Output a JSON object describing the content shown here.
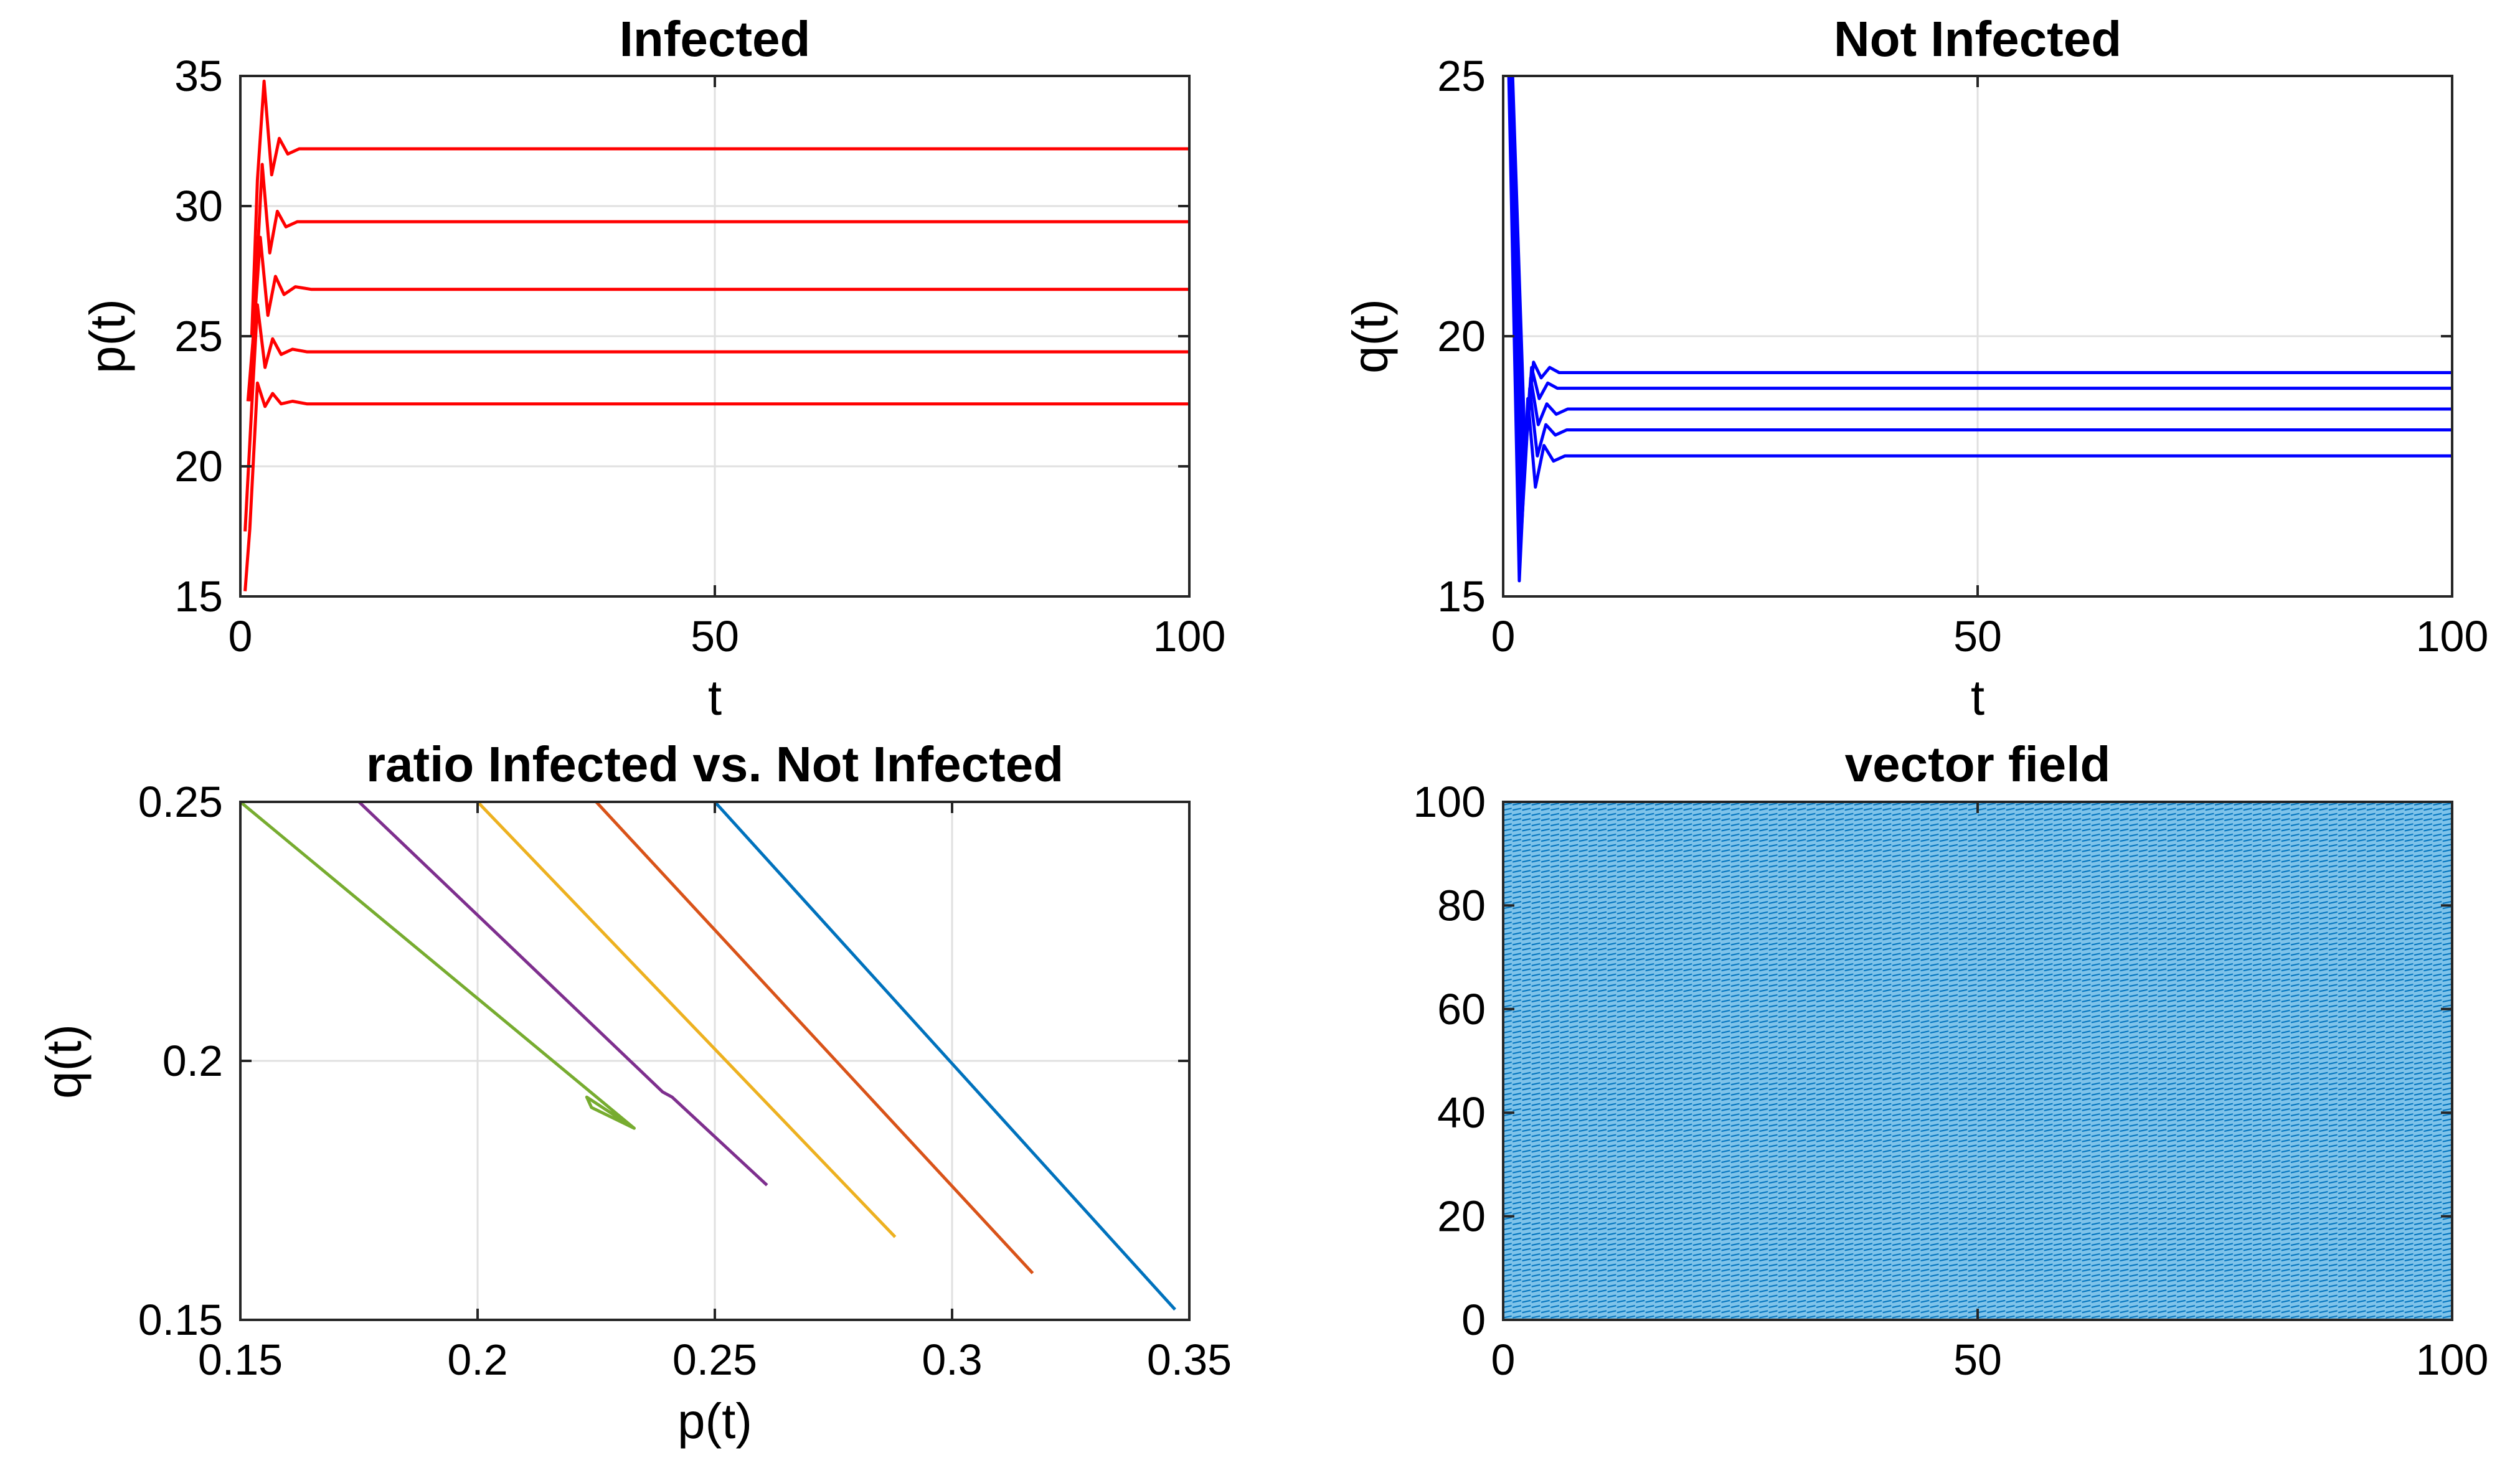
{
  "chart_data": [
    {
      "type": "line",
      "title": "Infected",
      "xlabel": "t",
      "ylabel": "p(t)",
      "xlim": [
        0,
        100
      ],
      "ylim": [
        15,
        35
      ],
      "xticks": [
        "0",
        "50",
        "100"
      ],
      "yticks": [
        "15",
        "20",
        "25",
        "30",
        "35"
      ],
      "grid": true,
      "color": "#ff0000",
      "series": [
        {
          "values": [
            [
              0.5,
              15.2
            ],
            [
              1.0,
              17.6
            ],
            [
              1.8,
              23.2
            ],
            [
              2.6,
              22.3
            ],
            [
              3.4,
              22.8
            ],
            [
              4.3,
              22.4
            ],
            [
              5.5,
              22.5
            ],
            [
              7,
              22.4
            ],
            [
              100,
              22.4
            ]
          ]
        },
        {
          "values": [
            [
              0.5,
              17.5
            ],
            [
              1.2,
              22.3
            ],
            [
              1.8,
              26.2
            ],
            [
              2.6,
              23.8
            ],
            [
              3.4,
              24.9
            ],
            [
              4.3,
              24.3
            ],
            [
              5.5,
              24.5
            ],
            [
              7,
              24.4
            ],
            [
              100,
              24.4
            ]
          ]
        },
        {
          "values": [
            [
              0.8,
              22.5
            ],
            [
              1.5,
              25.6
            ],
            [
              2.1,
              28.8
            ],
            [
              2.9,
              25.8
            ],
            [
              3.7,
              27.3
            ],
            [
              4.6,
              26.6
            ],
            [
              5.8,
              26.9
            ],
            [
              7.5,
              26.8
            ],
            [
              100,
              26.8
            ]
          ]
        },
        {
          "values": [
            [
              1.0,
              22.5
            ],
            [
              1.7,
              27.4
            ],
            [
              2.3,
              31.6
            ],
            [
              3.1,
              28.2
            ],
            [
              3.9,
              29.8
            ],
            [
              4.8,
              29.2
            ],
            [
              6.0,
              29.4
            ],
            [
              7.5,
              29.4
            ],
            [
              100,
              29.4
            ]
          ]
        },
        {
          "values": [
            [
              1.2,
              25.0
            ],
            [
              1.8,
              31.0
            ],
            [
              2.5,
              34.8
            ],
            [
              3.3,
              31.2
            ],
            [
              4.1,
              32.6
            ],
            [
              5.0,
              32.0
            ],
            [
              6.2,
              32.2
            ],
            [
              8,
              32.2
            ],
            [
              100,
              32.2
            ]
          ]
        }
      ]
    },
    {
      "type": "line",
      "title": "Not Infected",
      "xlabel": "t",
      "ylabel": "q(t)",
      "xlim": [
        0,
        100
      ],
      "ylim": [
        15,
        25
      ],
      "xticks": [
        "0",
        "50",
        "100"
      ],
      "yticks": [
        "15",
        "20",
        "25"
      ],
      "grid": true,
      "color": "#0000ff",
      "series": [
        {
          "values": [
            [
              0.6,
              25
            ],
            [
              1.7,
              15.3
            ],
            [
              2.6,
              18.8
            ],
            [
              3.4,
              17.1
            ],
            [
              4.3,
              17.9
            ],
            [
              5.3,
              17.6
            ],
            [
              6.5,
              17.7
            ],
            [
              8,
              17.7
            ],
            [
              100,
              17.7
            ]
          ]
        },
        {
          "values": [
            [
              0.7,
              25
            ],
            [
              1.9,
              16.2
            ],
            [
              2.8,
              19.0
            ],
            [
              3.6,
              17.7
            ],
            [
              4.5,
              18.3
            ],
            [
              5.5,
              18.1
            ],
            [
              6.7,
              18.2
            ],
            [
              8,
              18.2
            ],
            [
              100,
              18.2
            ]
          ]
        },
        {
          "values": [
            [
              0.8,
              25
            ],
            [
              2.0,
              16.8
            ],
            [
              2.9,
              19.2
            ],
            [
              3.7,
              18.3
            ],
            [
              4.6,
              18.7
            ],
            [
              5.6,
              18.5
            ],
            [
              6.8,
              18.6
            ],
            [
              8,
              18.6
            ],
            [
              100,
              18.6
            ]
          ]
        },
        {
          "values": [
            [
              0.9,
              25
            ],
            [
              2.2,
              17.3
            ],
            [
              3.0,
              19.4
            ],
            [
              3.8,
              18.8
            ],
            [
              4.7,
              19.1
            ],
            [
              5.7,
              19.0
            ],
            [
              6.9,
              19.0
            ],
            [
              8,
              19.0
            ],
            [
              100,
              19.0
            ]
          ]
        },
        {
          "values": [
            [
              1.0,
              25
            ],
            [
              2.3,
              17.8
            ],
            [
              3.2,
              19.5
            ],
            [
              4.0,
              19.2
            ],
            [
              4.9,
              19.4
            ],
            [
              5.9,
              19.3
            ],
            [
              7.0,
              19.3
            ],
            [
              8,
              19.3
            ],
            [
              100,
              19.3
            ]
          ]
        }
      ]
    },
    {
      "type": "line",
      "title": "ratio Infected vs. Not Infected",
      "xlabel": "p(t)",
      "ylabel": "q(t)",
      "xlim": [
        0.15,
        0.35
      ],
      "ylim": [
        0.15,
        0.25
      ],
      "xticks": [
        "0.15",
        "0.2",
        "0.25",
        "0.3",
        "0.35"
      ],
      "yticks": [
        "0.15",
        "0.2",
        "0.25"
      ],
      "grid": true,
      "series": [
        {
          "color": "#0072bd",
          "values": [
            [
              0.25,
              0.25
            ],
            [
              0.347,
              0.152
            ]
          ]
        },
        {
          "color": "#d95319",
          "values": [
            [
              0.225,
              0.25
            ],
            [
              0.317,
              0.159
            ]
          ]
        },
        {
          "color": "#edb120",
          "values": [
            [
              0.2,
              0.25
            ],
            [
              0.288,
              0.166
            ]
          ]
        },
        {
          "color": "#7e2f8e",
          "values": [
            [
              0.175,
              0.25
            ],
            [
              0.239,
              0.194
            ],
            [
              0.241,
              0.193
            ],
            [
              0.261,
              0.176
            ]
          ]
        },
        {
          "color": "#77ac30",
          "values": [
            [
              0.15,
              0.25
            ],
            [
              0.233,
              0.187
            ],
            [
              0.223,
              0.193
            ],
            [
              0.224,
              0.191
            ],
            [
              0.233,
              0.187
            ]
          ]
        }
      ]
    },
    {
      "type": "quiver",
      "title": "vector field",
      "xlim": [
        0,
        100
      ],
      "ylim": [
        0,
        100
      ],
      "xticks": [
        "0",
        "50",
        "100"
      ],
      "yticks": [
        "0",
        "20",
        "40",
        "60",
        "80",
        "100"
      ],
      "grid": false,
      "color": "#0072bd",
      "grid_spacing": 1
    }
  ]
}
